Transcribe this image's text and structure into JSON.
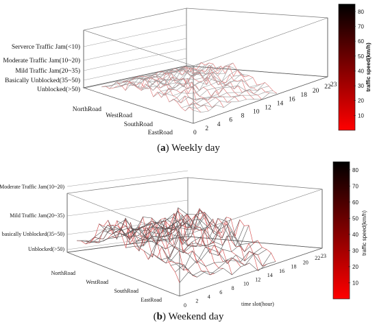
{
  "chart_data": [
    {
      "type": "surface3d",
      "caption_tag": "a",
      "caption_text": "Weekly day",
      "x_ticks": [
        "0",
        "2",
        "4",
        "6",
        "8",
        "10",
        "12",
        "14",
        "16",
        "18",
        "20",
        "22",
        "23"
      ],
      "y_ticks": [
        "NorthRoad",
        "WestRoad",
        "SouthRoad",
        "EastRoad"
      ],
      "z_labels": [
        "Unblocked(>50)",
        "Basically Unblocked(35~50)",
        "Mild Traffic Jam(20~35)",
        "Moderate Traffic Jam(10~20)",
        "Serverce Traffic Jam(<10)"
      ],
      "colorbar": {
        "label": "traffic speed(km/h)",
        "ticks": [
          "10",
          "20",
          "30",
          "40",
          "50",
          "60",
          "70",
          "80"
        ],
        "range": [
          0,
          85
        ],
        "colors": [
          "#ff0000",
          "#000000"
        ]
      }
    },
    {
      "type": "surface3d",
      "caption_tag": "b",
      "caption_text": "Weekend day",
      "xlabel": "time slot(hour)",
      "x_ticks": [
        "0",
        "2",
        "4",
        "6",
        "8",
        "10",
        "12",
        "14",
        "16",
        "18",
        "20",
        "22",
        "23"
      ],
      "y_ticks": [
        "NorthRoad",
        "WestRoad",
        "SouthRoad",
        "EastRoad"
      ],
      "z_labels": [
        "Unblocked(>50)",
        "basically Unblocked(35~50)",
        "Mild Traffic Jam(20~35)",
        "Moderate Traffic Jam(10~20)"
      ],
      "colorbar": {
        "label": "traffic speed(km/h)",
        "ticks": [
          "10",
          "20",
          "30",
          "40",
          "50",
          "60",
          "70",
          "80"
        ],
        "range": [
          0,
          85
        ],
        "colors": [
          "#ff0000",
          "#000000"
        ]
      }
    }
  ]
}
